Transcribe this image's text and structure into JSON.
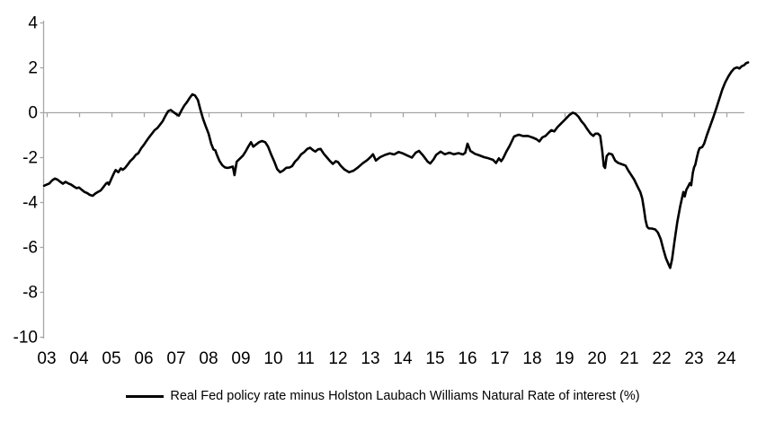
{
  "chart_data": {
    "type": "line",
    "title": "",
    "xlabel": "",
    "ylabel": "",
    "ylim": [
      -10,
      4
    ],
    "xlim_years": [
      2002.9,
      2024.8
    ],
    "grid": "single horizontal gridline at zero only",
    "legend_position": "bottom-center",
    "axes": {
      "y_ticks": [
        4,
        2,
        0,
        -2,
        -4,
        -6,
        -8,
        -10
      ],
      "x_tick_labels": [
        "03",
        "04",
        "05",
        "06",
        "07",
        "08",
        "09",
        "10",
        "11",
        "12",
        "13",
        "14",
        "15",
        "16",
        "17",
        "18",
        "19",
        "20",
        "21",
        "22",
        "23",
        "24"
      ],
      "x_tick_years": [
        2003,
        2004,
        2005,
        2006,
        2007,
        2008,
        2009,
        2010,
        2011,
        2012,
        2013,
        2014,
        2015,
        2016,
        2017,
        2018,
        2019,
        2020,
        2021,
        2022,
        2023,
        2024
      ]
    },
    "colors": {
      "series_line": "#000000",
      "axis_line": "#a6a6a6",
      "zero_line": "#a6a6a6",
      "text": "#000000",
      "background": "#ffffff"
    },
    "series": [
      {
        "name": "Real Fed policy rate minus Holston Laubach Williams Natural Rate of interest (%)",
        "color": "#000000",
        "points": [
          [
            2002.92,
            -3.27
          ],
          [
            2003.0,
            -3.22
          ],
          [
            2003.08,
            -3.17
          ],
          [
            2003.17,
            -3.03
          ],
          [
            2003.25,
            -2.95
          ],
          [
            2003.33,
            -3.0
          ],
          [
            2003.42,
            -3.1
          ],
          [
            2003.5,
            -3.18
          ],
          [
            2003.58,
            -3.1
          ],
          [
            2003.67,
            -3.17
          ],
          [
            2003.75,
            -3.22
          ],
          [
            2003.83,
            -3.3
          ],
          [
            2003.92,
            -3.38
          ],
          [
            2004.0,
            -3.35
          ],
          [
            2004.08,
            -3.45
          ],
          [
            2004.17,
            -3.55
          ],
          [
            2004.25,
            -3.6
          ],
          [
            2004.33,
            -3.68
          ],
          [
            2004.42,
            -3.72
          ],
          [
            2004.5,
            -3.62
          ],
          [
            2004.58,
            -3.55
          ],
          [
            2004.67,
            -3.48
          ],
          [
            2004.75,
            -3.33
          ],
          [
            2004.83,
            -3.18
          ],
          [
            2004.88,
            -3.13
          ],
          [
            2004.92,
            -3.22
          ],
          [
            2005.0,
            -2.95
          ],
          [
            2005.08,
            -2.7
          ],
          [
            2005.13,
            -2.57
          ],
          [
            2005.21,
            -2.67
          ],
          [
            2005.29,
            -2.5
          ],
          [
            2005.35,
            -2.56
          ],
          [
            2005.42,
            -2.48
          ],
          [
            2005.5,
            -2.33
          ],
          [
            2005.58,
            -2.17
          ],
          [
            2005.67,
            -2.05
          ],
          [
            2005.75,
            -1.9
          ],
          [
            2005.83,
            -1.82
          ],
          [
            2005.92,
            -1.6
          ],
          [
            2006.0,
            -1.45
          ],
          [
            2006.08,
            -1.28
          ],
          [
            2006.17,
            -1.1
          ],
          [
            2006.25,
            -0.95
          ],
          [
            2006.33,
            -0.8
          ],
          [
            2006.42,
            -0.7
          ],
          [
            2006.5,
            -0.55
          ],
          [
            2006.58,
            -0.4
          ],
          [
            2006.67,
            -0.15
          ],
          [
            2006.75,
            0.05
          ],
          [
            2006.83,
            0.1
          ],
          [
            2006.92,
            0.0
          ],
          [
            2007.0,
            -0.08
          ],
          [
            2007.08,
            -0.15
          ],
          [
            2007.17,
            0.1
          ],
          [
            2007.25,
            0.3
          ],
          [
            2007.33,
            0.45
          ],
          [
            2007.42,
            0.65
          ],
          [
            2007.5,
            0.8
          ],
          [
            2007.58,
            0.75
          ],
          [
            2007.67,
            0.55
          ],
          [
            2007.75,
            0.1
          ],
          [
            2007.83,
            -0.3
          ],
          [
            2007.92,
            -0.65
          ],
          [
            2008.0,
            -0.95
          ],
          [
            2008.08,
            -1.4
          ],
          [
            2008.15,
            -1.65
          ],
          [
            2008.21,
            -1.7
          ],
          [
            2008.25,
            -1.87
          ],
          [
            2008.33,
            -2.15
          ],
          [
            2008.42,
            -2.35
          ],
          [
            2008.5,
            -2.45
          ],
          [
            2008.58,
            -2.48
          ],
          [
            2008.67,
            -2.45
          ],
          [
            2008.75,
            -2.42
          ],
          [
            2008.8,
            -2.8
          ],
          [
            2008.87,
            -2.2
          ],
          [
            2008.96,
            -2.07
          ],
          [
            2009.06,
            -1.93
          ],
          [
            2009.15,
            -1.73
          ],
          [
            2009.24,
            -1.5
          ],
          [
            2009.31,
            -1.33
          ],
          [
            2009.38,
            -1.53
          ],
          [
            2009.47,
            -1.43
          ],
          [
            2009.56,
            -1.33
          ],
          [
            2009.65,
            -1.28
          ],
          [
            2009.75,
            -1.33
          ],
          [
            2009.84,
            -1.53
          ],
          [
            2009.93,
            -1.87
          ],
          [
            2010.03,
            -2.2
          ],
          [
            2010.12,
            -2.53
          ],
          [
            2010.21,
            -2.67
          ],
          [
            2010.3,
            -2.6
          ],
          [
            2010.4,
            -2.47
          ],
          [
            2010.5,
            -2.46
          ],
          [
            2010.58,
            -2.4
          ],
          [
            2010.67,
            -2.2
          ],
          [
            2010.76,
            -2.07
          ],
          [
            2010.86,
            -1.87
          ],
          [
            2010.95,
            -1.78
          ],
          [
            2011.05,
            -1.63
          ],
          [
            2011.14,
            -1.58
          ],
          [
            2011.22,
            -1.68
          ],
          [
            2011.3,
            -1.75
          ],
          [
            2011.38,
            -1.65
          ],
          [
            2011.46,
            -1.63
          ],
          [
            2011.56,
            -1.85
          ],
          [
            2011.65,
            -2.0
          ],
          [
            2011.74,
            -2.15
          ],
          [
            2011.84,
            -2.3
          ],
          [
            2011.93,
            -2.18
          ],
          [
            2012.0,
            -2.22
          ],
          [
            2012.08,
            -2.38
          ],
          [
            2012.2,
            -2.55
          ],
          [
            2012.34,
            -2.67
          ],
          [
            2012.48,
            -2.6
          ],
          [
            2012.62,
            -2.45
          ],
          [
            2012.76,
            -2.27
          ],
          [
            2012.9,
            -2.13
          ],
          [
            2013.0,
            -2.0
          ],
          [
            2013.08,
            -1.87
          ],
          [
            2013.17,
            -2.15
          ],
          [
            2013.3,
            -2.0
          ],
          [
            2013.45,
            -1.9
          ],
          [
            2013.6,
            -1.83
          ],
          [
            2013.73,
            -1.88
          ],
          [
            2013.87,
            -1.77
          ],
          [
            2014.0,
            -1.83
          ],
          [
            2014.15,
            -1.93
          ],
          [
            2014.28,
            -2.02
          ],
          [
            2014.4,
            -1.8
          ],
          [
            2014.5,
            -1.72
          ],
          [
            2014.63,
            -1.93
          ],
          [
            2014.77,
            -2.2
          ],
          [
            2014.85,
            -2.28
          ],
          [
            2014.95,
            -2.1
          ],
          [
            2015.03,
            -1.9
          ],
          [
            2015.17,
            -1.75
          ],
          [
            2015.3,
            -1.87
          ],
          [
            2015.44,
            -1.8
          ],
          [
            2015.58,
            -1.87
          ],
          [
            2015.72,
            -1.82
          ],
          [
            2015.86,
            -1.88
          ],
          [
            2015.93,
            -1.8
          ],
          [
            2016.0,
            -1.4
          ],
          [
            2016.09,
            -1.72
          ],
          [
            2016.23,
            -1.85
          ],
          [
            2016.37,
            -1.92
          ],
          [
            2016.51,
            -2.0
          ],
          [
            2016.65,
            -2.05
          ],
          [
            2016.79,
            -2.12
          ],
          [
            2016.88,
            -2.26
          ],
          [
            2016.97,
            -2.05
          ],
          [
            2017.04,
            -2.18
          ],
          [
            2017.1,
            -2.05
          ],
          [
            2017.2,
            -1.75
          ],
          [
            2017.3,
            -1.5
          ],
          [
            2017.44,
            -1.08
          ],
          [
            2017.58,
            -1.0
          ],
          [
            2017.72,
            -1.06
          ],
          [
            2017.86,
            -1.05
          ],
          [
            2018.0,
            -1.12
          ],
          [
            2018.13,
            -1.2
          ],
          [
            2018.22,
            -1.3
          ],
          [
            2018.31,
            -1.12
          ],
          [
            2018.41,
            -1.05
          ],
          [
            2018.5,
            -0.92
          ],
          [
            2018.59,
            -0.8
          ],
          [
            2018.68,
            -0.85
          ],
          [
            2018.78,
            -0.66
          ],
          [
            2018.87,
            -0.53
          ],
          [
            2018.96,
            -0.4
          ],
          [
            2019.06,
            -0.25
          ],
          [
            2019.15,
            -0.12
          ],
          [
            2019.25,
            -0.02
          ],
          [
            2019.33,
            -0.06
          ],
          [
            2019.43,
            -0.2
          ],
          [
            2019.52,
            -0.4
          ],
          [
            2019.61,
            -0.55
          ],
          [
            2019.7,
            -0.75
          ],
          [
            2019.8,
            -0.95
          ],
          [
            2019.89,
            -1.05
          ],
          [
            2019.95,
            -0.95
          ],
          [
            2020.03,
            -0.95
          ],
          [
            2020.1,
            -1.05
          ],
          [
            2020.16,
            -1.7
          ],
          [
            2020.21,
            -2.4
          ],
          [
            2020.25,
            -2.48
          ],
          [
            2020.3,
            -1.95
          ],
          [
            2020.37,
            -1.83
          ],
          [
            2020.47,
            -1.88
          ],
          [
            2020.56,
            -2.15
          ],
          [
            2020.65,
            -2.25
          ],
          [
            2020.74,
            -2.3
          ],
          [
            2020.88,
            -2.37
          ],
          [
            2020.97,
            -2.6
          ],
          [
            2021.06,
            -2.8
          ],
          [
            2021.15,
            -3.0
          ],
          [
            2021.25,
            -3.3
          ],
          [
            2021.34,
            -3.55
          ],
          [
            2021.4,
            -3.85
          ],
          [
            2021.45,
            -4.3
          ],
          [
            2021.5,
            -4.8
          ],
          [
            2021.55,
            -5.1
          ],
          [
            2021.6,
            -5.17
          ],
          [
            2021.7,
            -5.18
          ],
          [
            2021.8,
            -5.22
          ],
          [
            2021.88,
            -5.35
          ],
          [
            2021.97,
            -5.65
          ],
          [
            2022.05,
            -6.1
          ],
          [
            2022.13,
            -6.5
          ],
          [
            2022.22,
            -6.8
          ],
          [
            2022.26,
            -6.93
          ],
          [
            2022.32,
            -6.55
          ],
          [
            2022.4,
            -5.7
          ],
          [
            2022.48,
            -4.9
          ],
          [
            2022.57,
            -4.2
          ],
          [
            2022.63,
            -3.8
          ],
          [
            2022.67,
            -3.55
          ],
          [
            2022.71,
            -3.75
          ],
          [
            2022.76,
            -3.45
          ],
          [
            2022.82,
            -3.3
          ],
          [
            2022.87,
            -3.15
          ],
          [
            2022.91,
            -3.25
          ],
          [
            2022.96,
            -2.7
          ],
          [
            2023.0,
            -2.45
          ],
          [
            2023.04,
            -2.33
          ],
          [
            2023.08,
            -2.05
          ],
          [
            2023.13,
            -1.75
          ],
          [
            2023.17,
            -1.6
          ],
          [
            2023.25,
            -1.55
          ],
          [
            2023.31,
            -1.4
          ],
          [
            2023.4,
            -1.0
          ],
          [
            2023.5,
            -0.6
          ],
          [
            2023.6,
            -0.2
          ],
          [
            2023.68,
            0.15
          ],
          [
            2023.78,
            0.6
          ],
          [
            2023.87,
            1.0
          ],
          [
            2023.96,
            1.33
          ],
          [
            2024.06,
            1.6
          ],
          [
            2024.15,
            1.8
          ],
          [
            2024.24,
            1.95
          ],
          [
            2024.33,
            2.0
          ],
          [
            2024.4,
            1.95
          ],
          [
            2024.47,
            2.05
          ],
          [
            2024.55,
            2.1
          ],
          [
            2024.6,
            2.18
          ],
          [
            2024.67,
            2.22
          ]
        ]
      }
    ]
  }
}
